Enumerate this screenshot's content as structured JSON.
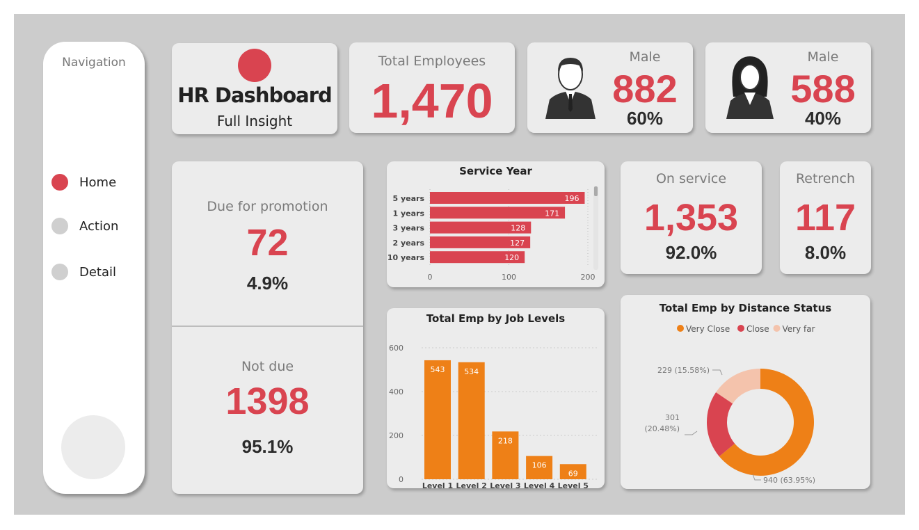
{
  "navigation": {
    "title": "Navigation",
    "items": [
      {
        "label": "Home",
        "active": true
      },
      {
        "label": "Action",
        "active": false
      },
      {
        "label": "Detail",
        "active": false
      }
    ]
  },
  "header": {
    "title": "HR Dashboard",
    "subtitle": "Full Insight"
  },
  "total_employees": {
    "label": "Total Employees",
    "value": "1,470"
  },
  "male": {
    "label": "Male",
    "value": "882",
    "percent": "60%",
    "icon": "male-person-icon"
  },
  "female": {
    "label": "Male",
    "value": "588",
    "percent": "40%",
    "icon": "female-person-icon"
  },
  "promotion": {
    "due_label": "Due for promotion",
    "due_value": "72",
    "due_percent": "4.9%",
    "not_due_label": "Not due",
    "not_due_value": "1398",
    "not_due_percent": "95.1%"
  },
  "on_service": {
    "label": "On service",
    "value": "1,353",
    "percent": "92.0%"
  },
  "retrench": {
    "label": "Retrench",
    "value": "117",
    "percent": "8.0%"
  },
  "colors": {
    "accent": "#d94450",
    "orange": "#ee8017",
    "light": "#f4c3ac",
    "background": "#cccccc",
    "card": "#ececec"
  },
  "chart_data": [
    {
      "type": "bar",
      "orientation": "horizontal",
      "title": "Service Year",
      "categories": [
        "5 years",
        "1 years",
        "3 years",
        "2 years",
        "10 years"
      ],
      "values": [
        196,
        171,
        128,
        127,
        120
      ],
      "xlim": [
        0,
        200
      ],
      "xticks": [
        0,
        100,
        200
      ],
      "color": "#d94450",
      "data_labels": true
    },
    {
      "type": "bar",
      "title": "Total Emp by Job Levels",
      "categories": [
        "Level 1",
        "Level 2",
        "Level 3",
        "Level 4",
        "Level 5"
      ],
      "values": [
        543,
        534,
        218,
        106,
        69
      ],
      "ylim": [
        0,
        600
      ],
      "yticks": [
        0,
        200,
        400,
        600
      ],
      "grid": true,
      "color": "#ee8017",
      "data_labels": true
    },
    {
      "type": "pie",
      "donut": true,
      "title": "Total Emp by Distance Status",
      "legend_position": "top",
      "slices": [
        {
          "name": "Very Close",
          "value": 940,
          "label": "940 (63.95%)",
          "color": "#ee8017"
        },
        {
          "name": "Close",
          "value": 301,
          "label": "301 (20.48%)",
          "color": "#d94450"
        },
        {
          "name": "Very far",
          "value": 229,
          "label": "229 (15.58%)",
          "color": "#f4c3ac"
        }
      ]
    }
  ]
}
